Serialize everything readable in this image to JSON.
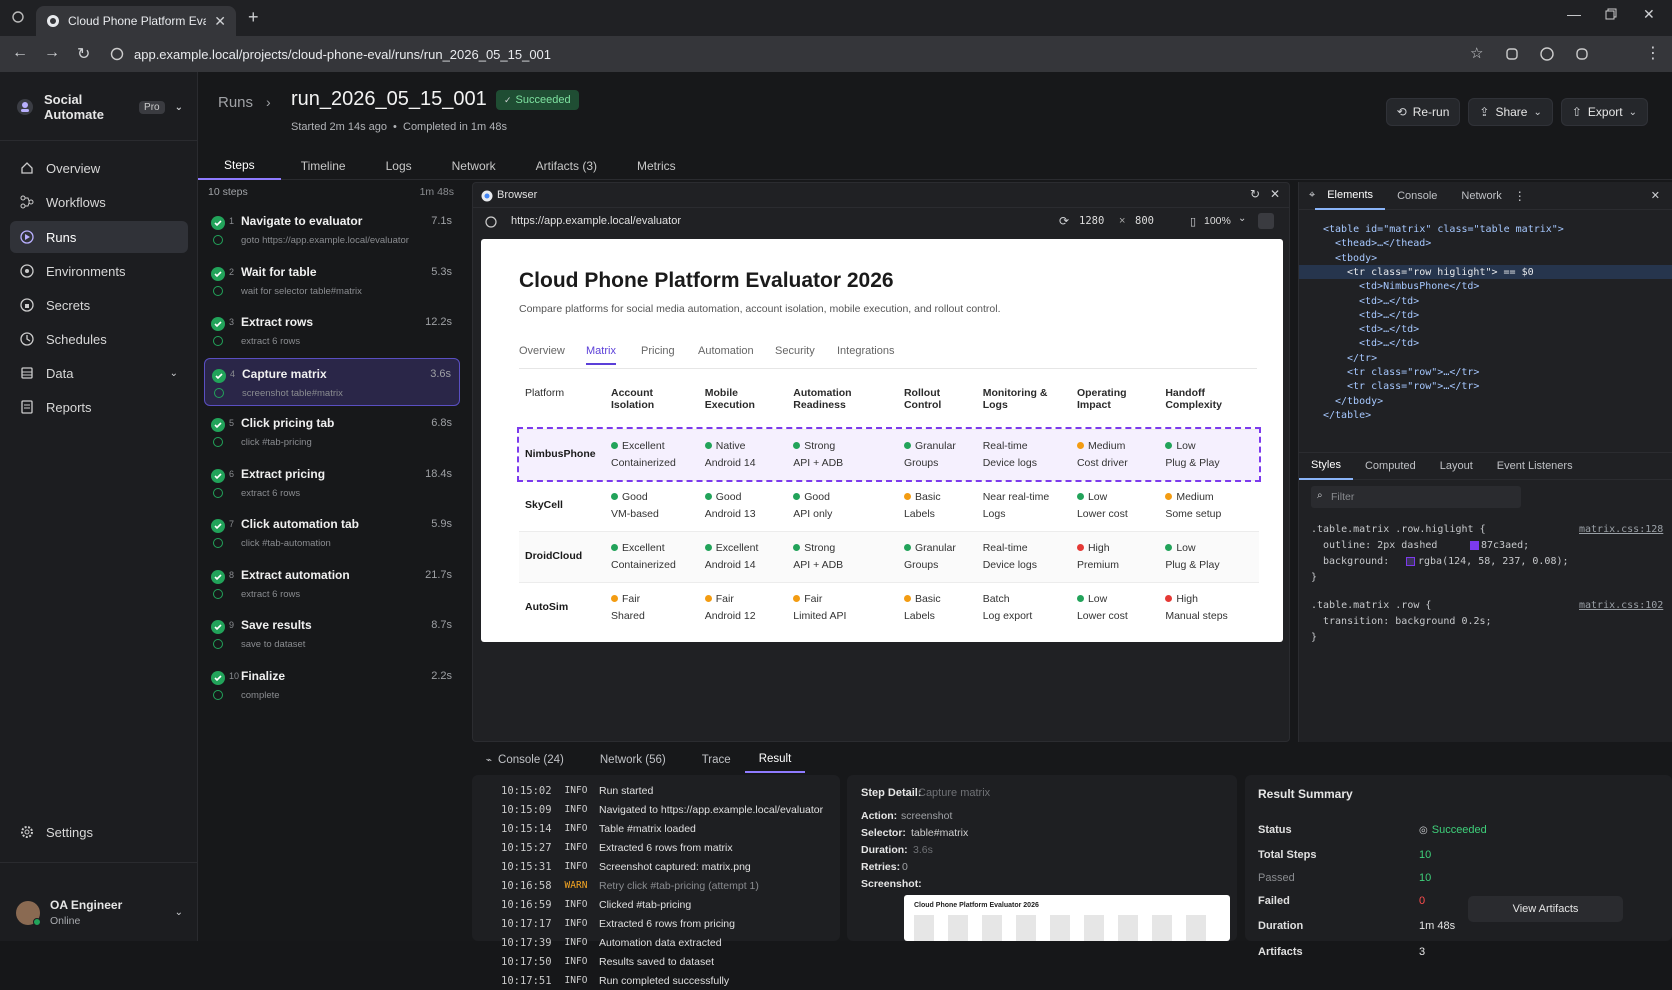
{
  "browser": {
    "tab_title": "Cloud Phone Platform Evaluator",
    "url": "app.example.local/projects/cloud-phone-eval/runs/run_2026_05_15_001"
  },
  "workspace": {
    "name": "Social Automate",
    "plan": "Pro"
  },
  "nav": [
    {
      "label": "Overview"
    },
    {
      "label": "Workflows"
    },
    {
      "label": "Runs"
    },
    {
      "label": "Environments"
    },
    {
      "label": "Secrets"
    },
    {
      "label": "Schedules"
    },
    {
      "label": "Data"
    },
    {
      "label": "Reports"
    }
  ],
  "settings_label": "Settings",
  "user": {
    "name": "OA Engineer",
    "status": "Online"
  },
  "header": {
    "breadcrumb": "Runs",
    "run_id": "run_2026_05_15_001",
    "status": "Succeeded",
    "started": "Started 2m 14s ago",
    "completed": "Completed in 1m 48s",
    "rerun": "Re-run",
    "share": "Share",
    "export": "Export"
  },
  "run_tabs": [
    "Steps",
    "Timeline",
    "Logs",
    "Network",
    "Artifacts (3)",
    "Metrics"
  ],
  "steps_meta": {
    "count": "10 steps",
    "total": "1m 48s"
  },
  "steps": [
    {
      "n": "1",
      "title": "Navigate to evaluator",
      "dur": "7.1s",
      "sub": "goto https://app.example.local/evaluator"
    },
    {
      "n": "2",
      "title": "Wait for table",
      "dur": "5.3s",
      "sub": "wait for selector table#matrix"
    },
    {
      "n": "3",
      "title": "Extract rows",
      "dur": "12.2s",
      "sub": "extract 6 rows"
    },
    {
      "n": "4",
      "title": "Capture matrix",
      "dur": "3.6s",
      "sub": "screenshot table#matrix"
    },
    {
      "n": "5",
      "title": "Click pricing tab",
      "dur": "6.8s",
      "sub": "click #tab-pricing"
    },
    {
      "n": "6",
      "title": "Extract pricing",
      "dur": "18.4s",
      "sub": "extract 6 rows"
    },
    {
      "n": "7",
      "title": "Click automation tab",
      "dur": "5.9s",
      "sub": "click #tab-automation"
    },
    {
      "n": "8",
      "title": "Extract automation",
      "dur": "21.7s",
      "sub": "extract 6 rows"
    },
    {
      "n": "9",
      "title": "Save results",
      "dur": "8.7s",
      "sub": "save to dataset"
    },
    {
      "n": "10",
      "title": "Finalize",
      "dur": "2.2s",
      "sub": "complete"
    }
  ],
  "browser_pane": {
    "title": "Browser",
    "url": "https://app.example.local/evaluator",
    "width": "1280",
    "height": "800",
    "zoom": "100%"
  },
  "evaluator": {
    "title": "Cloud Phone Platform Evaluator 2026",
    "subtitle": "Compare platforms for social media automation, account isolation, mobile execution, and rollout control.",
    "tabs": [
      "Overview",
      "Matrix",
      "Pricing",
      "Automation",
      "Security",
      "Integrations"
    ],
    "columns": [
      "Platform",
      "Account Isolation",
      "Mobile Execution",
      "Automation Readiness",
      "Rollout Control",
      "Monitoring & Logs",
      "Operating Impact",
      "Handoff Complexity"
    ],
    "rows": [
      {
        "name": "NimbusPhone",
        "cells": [
          [
            "Excellent",
            "Containerized",
            "#22a35a"
          ],
          [
            "Native",
            "Android 14",
            "#22a35a"
          ],
          [
            "Strong",
            "API + ADB",
            "#22a35a"
          ],
          [
            "Granular",
            "Groups",
            "#22a35a"
          ],
          [
            "Real-time",
            "Device logs",
            ""
          ],
          [
            "Medium",
            "Cost driver",
            "#f39c12"
          ],
          [
            "Low",
            "Plug & Play",
            "#22a35a"
          ]
        ]
      },
      {
        "name": "SkyCell",
        "cells": [
          [
            "Good",
            "VM-based",
            "#22a35a"
          ],
          [
            "Good",
            "Android 13",
            "#22a35a"
          ],
          [
            "Good",
            "API only",
            "#22a35a"
          ],
          [
            "Basic",
            "Labels",
            "#f39c12"
          ],
          [
            "Near real-time",
            "Logs",
            ""
          ],
          [
            "Low",
            "Lower cost",
            "#22a35a"
          ],
          [
            "Medium",
            "Some setup",
            "#f39c12"
          ]
        ]
      },
      {
        "name": "DroidCloud",
        "cells": [
          [
            "Excellent",
            "Containerized",
            "#22a35a"
          ],
          [
            "Excellent",
            "Android 14",
            "#22a35a"
          ],
          [
            "Strong",
            "API + ADB",
            "#22a35a"
          ],
          [
            "Granular",
            "Groups",
            "#22a35a"
          ],
          [
            "Real-time",
            "Device logs",
            ""
          ],
          [
            "High",
            "Premium",
            "#e53935"
          ],
          [
            "Low",
            "Plug & Play",
            "#22a35a"
          ]
        ]
      },
      {
        "name": "AutoSim",
        "cells": [
          [
            "Fair",
            "Shared",
            "#f39c12"
          ],
          [
            "Fair",
            "Android 12",
            "#f39c12"
          ],
          [
            "Fair",
            "Limited API",
            "#f39c12"
          ],
          [
            "Basic",
            "Labels",
            "#f39c12"
          ],
          [
            "Batch",
            "Log export",
            ""
          ],
          [
            "Low",
            "Lower cost",
            "#22a35a"
          ],
          [
            "High",
            "Manual steps",
            "#e53935"
          ]
        ]
      }
    ]
  },
  "devtools": {
    "tabs": [
      "Elements",
      "Console",
      "Network"
    ],
    "dom": [
      "<table id=\"matrix\" class=\"table matrix\">",
      "<thead>…</thead>",
      "<tbody>",
      "<tr class=\"row higlight\"> == $0",
      "<td>NimbusPhone</td>",
      "<td>…</td>",
      "<td>…</td>",
      "<td>…</td>",
      "<td>…</td>",
      "</tr>",
      "<tr class=\"row\">…</tr>",
      "<tr class=\"row\">…</tr>",
      "</tbody>",
      "</table>"
    ],
    "style_tabs": [
      "Styles",
      "Computed",
      "Layout",
      "Event Listeners"
    ],
    "filter_placeholder": "Filter",
    "rule1": {
      "selector": ".table.matrix .row.higlight {",
      "src": "matrix.css:128",
      "l1": "outline: 2px dashed",
      "c1": "#7c3aed",
      "v1": "87c3aed;",
      "l2": "background:",
      "c2": "#3c3558",
      "v2": "rgba(124, 58, 237, 0.08);"
    },
    "rule2": {
      "selector": ".table.matrix .row {",
      "src": "matrix.css:102",
      "l1": "transition: background 0.2s;"
    }
  },
  "bottom_tabs": [
    "Console (24)",
    "Network (56)",
    "Trace",
    "Result"
  ],
  "logs": [
    {
      "t": "10:15:02",
      "l": "INFO",
      "m": "Run started"
    },
    {
      "t": "10:15:09",
      "l": "INFO",
      "m": "Navigated to https://app.example.local/evaluator"
    },
    {
      "t": "10:15:14",
      "l": "INFO",
      "m": "Table #matrix loaded"
    },
    {
      "t": "10:15:27",
      "l": "INFO",
      "m": "Extracted 6 rows from matrix"
    },
    {
      "t": "10:15:31",
      "l": "INFO",
      "m": "Screenshot captured: matrix.png"
    },
    {
      "t": "10:16:58",
      "l": "WARN",
      "m": "Retry click #tab-pricing (attempt 1)"
    },
    {
      "t": "10:16:59",
      "l": "INFO",
      "m": "Clicked #tab-pricing"
    },
    {
      "t": "10:17:17",
      "l": "INFO",
      "m": "Extracted 6 rows from pricing"
    },
    {
      "t": "10:17:39",
      "l": "INFO",
      "m": "Automation data extracted"
    },
    {
      "t": "10:17:50",
      "l": "INFO",
      "m": "Results saved to dataset"
    },
    {
      "t": "10:17:51",
      "l": "INFO",
      "m": "Run completed successfully"
    }
  ],
  "detail": {
    "title": "Step Detail:",
    "step": "Capture matrix",
    "action_l": "Action:",
    "action": "screenshot",
    "selector_l": "Selector:",
    "selector": "table#matrix",
    "duration_l": "Duration:",
    "duration": "3.6s",
    "retries_l": "Retries:",
    "retries": "0",
    "screenshot_l": "Screenshot:",
    "thumb_title": "Cloud Phone Platform Evaluator 2026"
  },
  "summary": {
    "title": "Result Summary",
    "status_l": "Status",
    "status": "Succeeded",
    "total_l": "Total Steps",
    "total": "10",
    "passed_l": "Passed",
    "passed": "10",
    "failed_l": "Failed",
    "failed": "0",
    "duration_l": "Duration",
    "duration": "1m 48s",
    "artifacts_l": "Artifacts",
    "artifacts": "3",
    "view": "View Artifacts"
  }
}
